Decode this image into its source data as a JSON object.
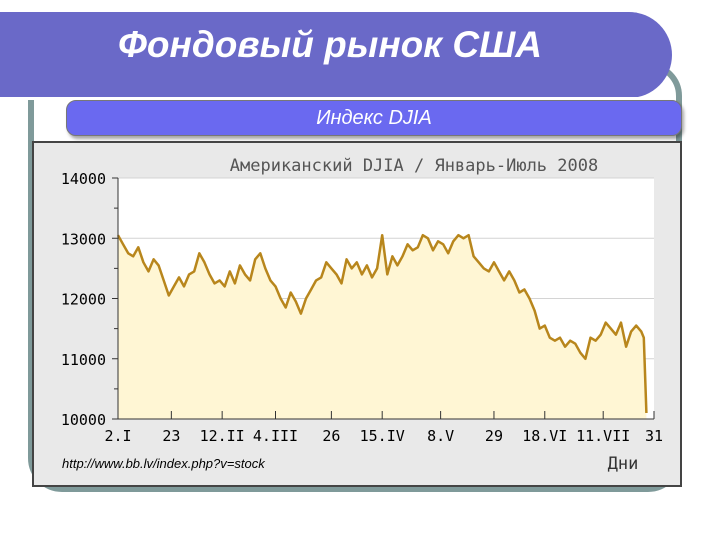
{
  "slide": {
    "title": "Фондовый рынок США",
    "subtitle": "Индекс DJIA",
    "source": "http://www.bb.lv/index.php?v=stock"
  },
  "colors": {
    "header": "#6a69c8",
    "subtitle_box": "#6a69f0",
    "frame": "#7f9a9a",
    "line": "#b8861c",
    "fill": "#fff6d4",
    "panel": "#e9e9e9"
  },
  "chart_data": {
    "type": "area",
    "title": "Американский DJIA / Январь-Июль 2008",
    "xlabel": "Дни",
    "ylabel": "",
    "ylim": [
      10000,
      14000
    ],
    "yticks": [
      10000,
      11000,
      12000,
      13000,
      14000
    ],
    "xticks": [
      {
        "label": "2.I",
        "day": 0
      },
      {
        "label": "23",
        "day": 21
      },
      {
        "label": "12.II",
        "day": 41
      },
      {
        "label": "4.III",
        "day": 62
      },
      {
        "label": "26",
        "day": 84
      },
      {
        "label": "15.IV",
        "day": 104
      },
      {
        "label": "8.V",
        "day": 127
      },
      {
        "label": "29",
        "day": 148
      },
      {
        "label": "18.VI",
        "day": 168
      },
      {
        "label": "11.VII",
        "day": 191
      },
      {
        "label": "31",
        "day": 211
      }
    ],
    "grid": true,
    "series": [
      {
        "values": [
          [
            0,
            13050
          ],
          [
            2,
            12900
          ],
          [
            4,
            12750
          ],
          [
            6,
            12700
          ],
          [
            8,
            12850
          ],
          [
            10,
            12600
          ],
          [
            12,
            12450
          ],
          [
            14,
            12650
          ],
          [
            16,
            12550
          ],
          [
            18,
            12300
          ],
          [
            20,
            12050
          ],
          [
            22,
            12200
          ],
          [
            24,
            12350
          ],
          [
            26,
            12200
          ],
          [
            28,
            12400
          ],
          [
            30,
            12450
          ],
          [
            32,
            12750
          ],
          [
            34,
            12600
          ],
          [
            36,
            12400
          ],
          [
            38,
            12250
          ],
          [
            40,
            12300
          ],
          [
            42,
            12200
          ],
          [
            44,
            12450
          ],
          [
            46,
            12250
          ],
          [
            48,
            12550
          ],
          [
            50,
            12400
          ],
          [
            52,
            12300
          ],
          [
            54,
            12650
          ],
          [
            56,
            12750
          ],
          [
            58,
            12500
          ],
          [
            60,
            12300
          ],
          [
            62,
            12200
          ],
          [
            64,
            12000
          ],
          [
            66,
            11850
          ],
          [
            68,
            12100
          ],
          [
            70,
            11950
          ],
          [
            72,
            11750
          ],
          [
            74,
            12000
          ],
          [
            76,
            12150
          ],
          [
            78,
            12300
          ],
          [
            80,
            12350
          ],
          [
            82,
            12600
          ],
          [
            84,
            12500
          ],
          [
            86,
            12400
          ],
          [
            88,
            12250
          ],
          [
            90,
            12650
          ],
          [
            92,
            12500
          ],
          [
            94,
            12600
          ],
          [
            96,
            12400
          ],
          [
            98,
            12550
          ],
          [
            100,
            12350
          ],
          [
            102,
            12500
          ],
          [
            104,
            13050
          ],
          [
            106,
            12400
          ],
          [
            108,
            12700
          ],
          [
            110,
            12550
          ],
          [
            112,
            12700
          ],
          [
            114,
            12900
          ],
          [
            116,
            12800
          ],
          [
            118,
            12850
          ],
          [
            120,
            13050
          ],
          [
            122,
            13000
          ],
          [
            124,
            12800
          ],
          [
            126,
            12950
          ],
          [
            128,
            12900
          ],
          [
            130,
            12750
          ],
          [
            132,
            12950
          ],
          [
            134,
            13050
          ],
          [
            136,
            13000
          ],
          [
            138,
            13050
          ],
          [
            140,
            12700
          ],
          [
            142,
            12600
          ],
          [
            144,
            12500
          ],
          [
            146,
            12450
          ],
          [
            148,
            12600
          ],
          [
            150,
            12450
          ],
          [
            152,
            12300
          ],
          [
            154,
            12450
          ],
          [
            156,
            12300
          ],
          [
            158,
            12100
          ],
          [
            160,
            12150
          ],
          [
            162,
            12000
          ],
          [
            164,
            11800
          ],
          [
            166,
            11500
          ],
          [
            168,
            11550
          ],
          [
            170,
            11350
          ],
          [
            172,
            11300
          ],
          [
            174,
            11350
          ],
          [
            176,
            11200
          ],
          [
            178,
            11300
          ],
          [
            180,
            11250
          ],
          [
            182,
            11100
          ],
          [
            184,
            11000
          ],
          [
            186,
            11350
          ],
          [
            188,
            11300
          ],
          [
            190,
            11400
          ],
          [
            192,
            11600
          ],
          [
            194,
            11500
          ],
          [
            196,
            11400
          ],
          [
            198,
            11600
          ],
          [
            200,
            11200
          ],
          [
            202,
            11450
          ],
          [
            204,
            11550
          ],
          [
            206,
            11450
          ],
          [
            207,
            11350
          ],
          [
            208,
            10100
          ]
        ]
      }
    ]
  }
}
